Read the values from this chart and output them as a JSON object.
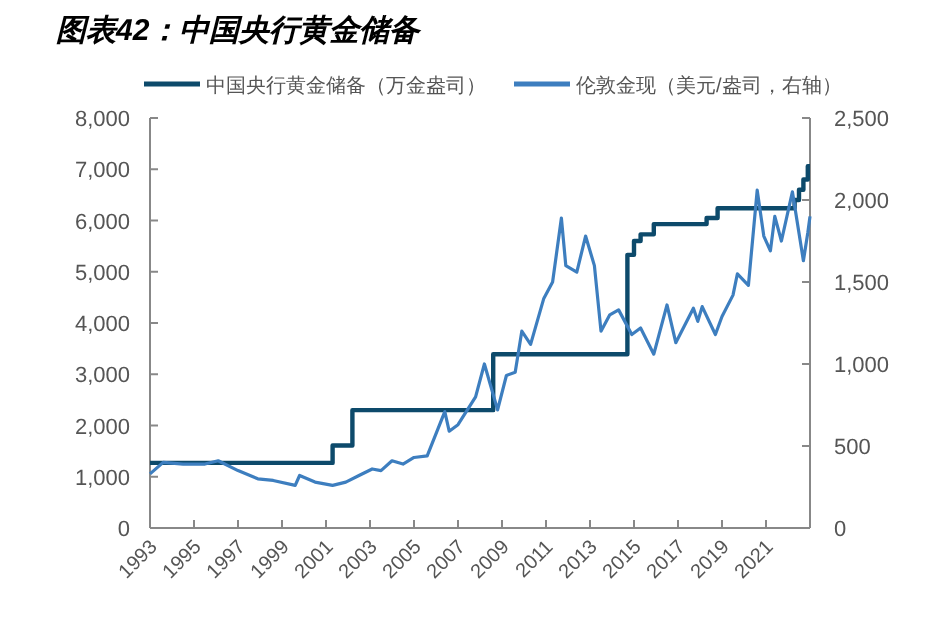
{
  "chart_data": {
    "type": "step",
    "title": "图表42：中国央行黄金储备",
    "xlim": [
      1993,
      2023
    ],
    "xticks": [
      1993,
      1995,
      1997,
      1999,
      2001,
      2003,
      2005,
      2007,
      2009,
      2011,
      2013,
      2015,
      2017,
      2019,
      2021
    ],
    "ylim": [
      0,
      8000
    ],
    "yticks": [
      0,
      {
        "value": 1000,
        "label": "1,000"
      },
      {
        "value": 2000,
        "label": "2,000"
      },
      {
        "value": 3000,
        "label": "3,000"
      },
      {
        "value": 4000,
        "label": "4,000"
      },
      {
        "value": 5000,
        "label": "5,000"
      },
      {
        "value": 6000,
        "label": "6,000"
      },
      {
        "value": 7000,
        "label": "7,000"
      },
      {
        "value": 8000,
        "label": "8,000"
      }
    ],
    "y2lim": [
      0,
      2500
    ],
    "y2ticks": [
      0,
      500,
      {
        "value": 1000,
        "label": "1,000"
      },
      {
        "value": 1500,
        "label": "1,500"
      },
      {
        "value": 2000,
        "label": "2,000"
      },
      {
        "value": 2500,
        "label": "2,500"
      }
    ],
    "legend": "top",
    "grid": false,
    "series": [
      {
        "name": "中国央行黄金储备（万金盎司）",
        "color": "#0d4a6b",
        "x": [
          1993,
          2001.3,
          2002.2,
          2008.6,
          2014.7,
          2015.0,
          2015.3,
          2015.9,
          2018.3,
          2018.8,
          2022.3,
          2022.5,
          2022.7,
          2022.9,
          2023.0
        ],
        "values": [
          1270,
          1610,
          2300,
          3390,
          5330,
          5600,
          5730,
          5930,
          6050,
          6240,
          6400,
          6600,
          6800,
          7060,
          7060
        ]
      },
      {
        "name": "伦敦金现（美元/盎司，右轴）",
        "type": "line",
        "axis": "y2",
        "color": "#3d7ebf",
        "x": [
          1993.0,
          1993.6,
          1994.5,
          1995.5,
          1996.1,
          1997.0,
          1997.9,
          1998.6,
          1999.6,
          1999.8,
          2000.5,
          2001.3,
          2001.9,
          2002.5,
          2003.1,
          2003.5,
          2004.0,
          2004.5,
          2005.0,
          2005.6,
          2006.4,
          2006.6,
          2007.0,
          2007.8,
          2008.2,
          2008.8,
          2009.2,
          2009.6,
          2009.9,
          2010.3,
          2010.9,
          2011.3,
          2011.7,
          2011.9,
          2012.4,
          2012.8,
          2013.2,
          2013.5,
          2013.9,
          2014.3,
          2014.9,
          2015.3,
          2015.9,
          2016.5,
          2016.9,
          2017.7,
          2017.9,
          2018.1,
          2018.7,
          2019.0,
          2019.5,
          2019.7,
          2020.2,
          2020.6,
          2020.9,
          2021.2,
          2021.4,
          2021.7,
          2022.2,
          2022.7,
          2022.9,
          2023.0
        ],
        "values": [
          330,
          400,
          390,
          390,
          410,
          350,
          300,
          290,
          260,
          320,
          280,
          260,
          280,
          320,
          360,
          350,
          410,
          390,
          430,
          440,
          710,
          590,
          630,
          800,
          1000,
          720,
          930,
          950,
          1200,
          1120,
          1400,
          1500,
          1890,
          1600,
          1560,
          1780,
          1600,
          1200,
          1300,
          1330,
          1180,
          1220,
          1060,
          1360,
          1130,
          1340,
          1260,
          1350,
          1180,
          1290,
          1420,
          1550,
          1480,
          2060,
          1780,
          1690,
          1900,
          1750,
          2050,
          1630,
          1800,
          1900
        ]
      }
    ]
  }
}
